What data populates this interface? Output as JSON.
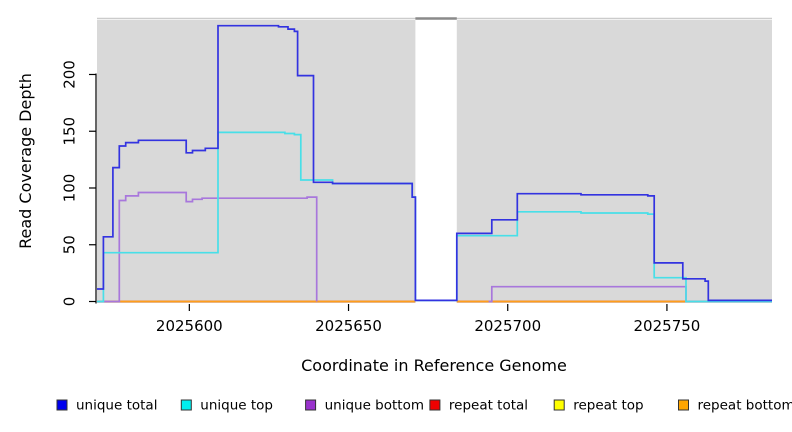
{
  "chart_data": {
    "type": "line",
    "subtype": "step-coverage",
    "title": "",
    "xlabel": "Coordinate in Reference Genome",
    "ylabel": "Read Coverage Depth",
    "xlim": [
      2025571,
      2025783
    ],
    "ylim": [
      0,
      248
    ],
    "x_ticks": [
      2025600,
      2025650,
      2025700,
      2025750
    ],
    "y_ticks": [
      0,
      50,
      100,
      150,
      200
    ],
    "grid": false,
    "legend_position": "bottom",
    "panel_background": "#d9d9d9",
    "no_data_gap": {
      "start": 2025671,
      "end": 2025684,
      "cap_color": "#8a8a8a"
    },
    "series": [
      {
        "name": "unique total",
        "color": "#3333e0",
        "legend_fill": "#0000EE",
        "z": 6,
        "segments": [
          [
            [
              2025571,
              11
            ],
            [
              2025573,
              57
            ],
            [
              2025576,
              118
            ],
            [
              2025578,
              137
            ],
            [
              2025580,
              140
            ],
            [
              2025584,
              142
            ],
            [
              2025598,
              142
            ],
            [
              2025599,
              131
            ],
            [
              2025601,
              133
            ],
            [
              2025605,
              135
            ],
            [
              2025609,
              243
            ],
            [
              2025628,
              242
            ],
            [
              2025631,
              240
            ],
            [
              2025633,
              238
            ],
            [
              2025634,
              199
            ],
            [
              2025639,
              105
            ],
            [
              2025645,
              104
            ],
            [
              2025670,
              92
            ],
            [
              2025671,
              1
            ],
            [
              2025684,
              60
            ],
            [
              2025695,
              72
            ],
            [
              2025703,
              95
            ],
            [
              2025723,
              94
            ],
            [
              2025744,
              93
            ],
            [
              2025746,
              34
            ],
            [
              2025755,
              20
            ],
            [
              2025762,
              18
            ],
            [
              2025763,
              1
            ],
            [
              2025783,
              1
            ]
          ]
        ]
      },
      {
        "name": "unique top",
        "color": "#48dfe8",
        "legend_fill": "#00EEEE",
        "z": 5,
        "segments": [
          [
            [
              2025571,
              0
            ],
            [
              2025573,
              43
            ],
            [
              2025609,
              149
            ],
            [
              2025630,
              148
            ],
            [
              2025633,
              147
            ],
            [
              2025635,
              107
            ],
            [
              2025645,
              104
            ],
            [
              2025670,
              92
            ],
            [
              2025671,
              1
            ],
            [
              2025684,
              58
            ],
            [
              2025703,
              79
            ],
            [
              2025723,
              78
            ],
            [
              2025744,
              77
            ],
            [
              2025746,
              21
            ],
            [
              2025756,
              0
            ],
            [
              2025783,
              0
            ]
          ]
        ]
      },
      {
        "name": "unique bottom",
        "color": "#a877dc",
        "legend_fill": "#9A32CD",
        "z": 4,
        "segments": [
          [
            [
              2025571,
              0
            ],
            [
              2025578,
              89
            ],
            [
              2025580,
              93
            ],
            [
              2025584,
              96
            ],
            [
              2025598,
              96
            ],
            [
              2025599,
              88
            ],
            [
              2025601,
              90
            ],
            [
              2025604,
              91
            ],
            [
              2025637,
              92
            ],
            [
              2025640,
              0
            ]
          ],
          [
            [
              2025694,
              0
            ],
            [
              2025695,
              13
            ],
            [
              2025756,
              13
            ],
            [
              2025756,
              0
            ],
            [
              2025783,
              0
            ]
          ]
        ]
      },
      {
        "name": "repeat total",
        "color": "#e03050",
        "legend_fill": "#EE0000",
        "z": 2,
        "segments": [
          [
            [
              2025571,
              0
            ],
            [
              2025671,
              0
            ]
          ],
          [
            [
              2025684,
              0
            ],
            [
              2025783,
              0
            ]
          ]
        ]
      },
      {
        "name": "repeat top",
        "color": "#f5f533",
        "legend_fill": "#FFFF00",
        "z": 1,
        "segments": [
          [
            [
              2025571,
              0
            ],
            [
              2025671,
              0
            ]
          ],
          [
            [
              2025684,
              0
            ],
            [
              2025783,
              0
            ]
          ]
        ]
      },
      {
        "name": "repeat bottom",
        "color": "#ff9e1b",
        "legend_fill": "#FFA500",
        "z": 3,
        "segments": [
          [
            [
              2025571,
              0
            ],
            [
              2025671,
              0
            ]
          ],
          [
            [
              2025684,
              0
            ],
            [
              2025783,
              0
            ]
          ]
        ]
      }
    ]
  }
}
